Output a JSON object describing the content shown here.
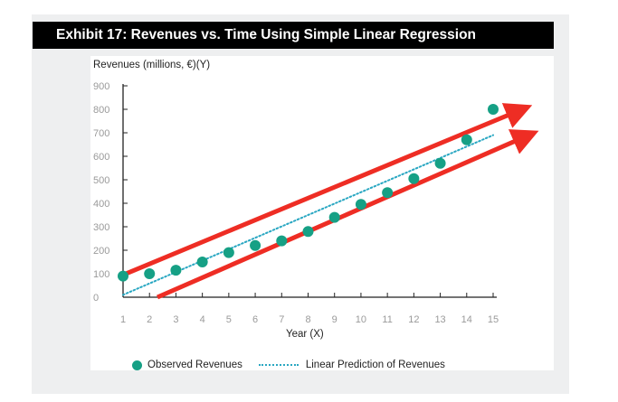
{
  "title": "Exhibit 17: Revenues vs. Time Using Simple Linear Regression",
  "colors": {
    "observed": "#16a085",
    "prediction": "#29a7c2",
    "arrows": "#ee2d24",
    "banner": "#000000",
    "panel": "#eeeff0"
  },
  "legend": {
    "observed_label": "Observed Revenues",
    "prediction_label": "Linear Prediction of Revenues"
  },
  "chart_data": {
    "type": "scatter",
    "title": "Exhibit 17: Revenues vs. Time Using Simple Linear Regression",
    "xlabel": "Year (X)",
    "ylabel": "Revenues (millions, €)(Y)",
    "xlim": [
      1,
      15
    ],
    "ylim": [
      0,
      900
    ],
    "x_ticks": [
      1,
      2,
      3,
      4,
      5,
      6,
      7,
      8,
      9,
      10,
      11,
      12,
      13,
      14,
      15
    ],
    "y_ticks": [
      0,
      100,
      200,
      300,
      400,
      500,
      600,
      700,
      800,
      900
    ],
    "grid": false,
    "legend_position": "bottom",
    "series": [
      {
        "name": "Observed Revenues",
        "type": "scatter",
        "x": [
          1,
          2,
          3,
          4,
          5,
          6,
          7,
          8,
          9,
          10,
          11,
          12,
          13,
          14,
          15
        ],
        "y": [
          90,
          100,
          115,
          150,
          190,
          220,
          240,
          280,
          340,
          395,
          445,
          505,
          570,
          670,
          800
        ]
      },
      {
        "name": "Linear Prediction of Revenues",
        "type": "line",
        "style": "dotted",
        "x": [
          1,
          15
        ],
        "y": [
          10,
          690
        ]
      }
    ],
    "annotations": [
      {
        "type": "arrow",
        "from": [
          1,
          95
        ],
        "to": [
          16.1,
          800
        ]
      },
      {
        "type": "arrow",
        "from": [
          2.3,
          0
        ],
        "to": [
          16.35,
          690
        ]
      }
    ]
  }
}
